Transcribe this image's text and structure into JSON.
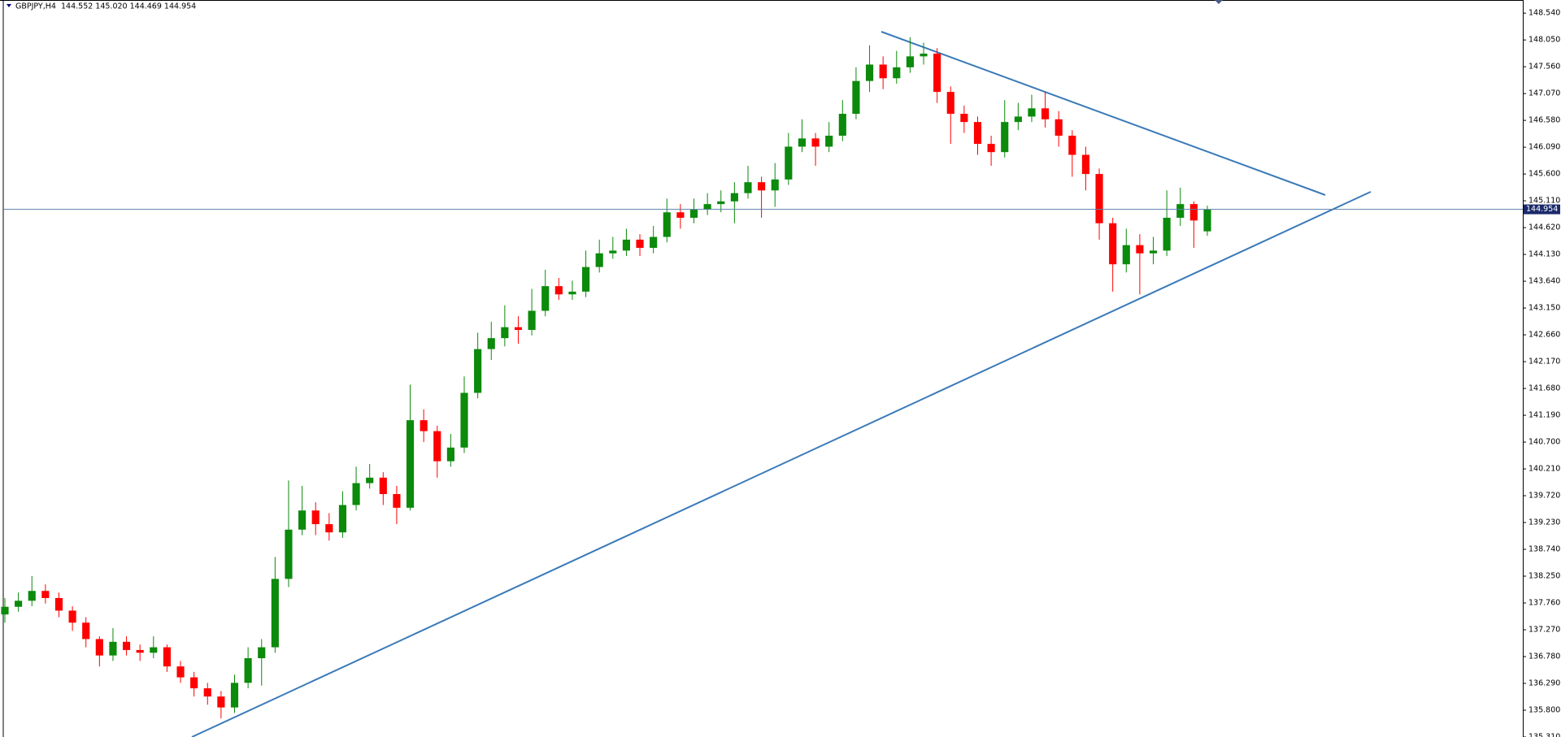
{
  "chart_data": {
    "type": "candlestick",
    "header": {
      "symbol": "GBPJPY,H4",
      "ohlc": "144.552 145.020 144.469 144.954"
    },
    "up_color": "#0b8a0b",
    "down_color": "#ff0000",
    "ylim": [
      135.31,
      148.78
    ],
    "yticks": [
      {
        "value": 148.54,
        "label": "148.540"
      },
      {
        "value": 148.05,
        "label": "148.050"
      },
      {
        "value": 147.56,
        "label": "147.560"
      },
      {
        "value": 147.07,
        "label": "147.070"
      },
      {
        "value": 146.58,
        "label": "146.580"
      },
      {
        "value": 146.09,
        "label": "146.090"
      },
      {
        "value": 145.6,
        "label": "145.600"
      },
      {
        "value": 145.11,
        "label": "145.110"
      },
      {
        "value": 144.62,
        "label": "144.620"
      },
      {
        "value": 144.13,
        "label": "144.130"
      },
      {
        "value": 143.64,
        "label": "143.640"
      },
      {
        "value": 143.15,
        "label": "143.150"
      },
      {
        "value": 142.66,
        "label": "142.660"
      },
      {
        "value": 142.17,
        "label": "142.170"
      },
      {
        "value": 141.68,
        "label": "141.680"
      },
      {
        "value": 141.19,
        "label": "141.190"
      },
      {
        "value": 140.7,
        "label": "140.700"
      },
      {
        "value": 140.21,
        "label": "140.210"
      },
      {
        "value": 139.72,
        "label": "139.720"
      },
      {
        "value": 139.23,
        "label": "139.230"
      },
      {
        "value": 138.74,
        "label": "138.740"
      },
      {
        "value": 138.25,
        "label": "138.250"
      },
      {
        "value": 137.76,
        "label": "137.760"
      },
      {
        "value": 137.27,
        "label": "137.270"
      },
      {
        "value": 136.78,
        "label": "136.780"
      },
      {
        "value": 136.29,
        "label": "136.290"
      },
      {
        "value": 135.8,
        "label": "135.800"
      },
      {
        "value": 135.31,
        "label": "135.310"
      }
    ],
    "current_price": {
      "value": 144.954,
      "label": "144.954"
    },
    "open": [
      137.55,
      137.69,
      137.8,
      137.98,
      137.85,
      137.62,
      137.4,
      137.1,
      136.8,
      137.05,
      136.9,
      136.85,
      136.95,
      136.6,
      136.4,
      136.2,
      136.05,
      135.85,
      136.3,
      136.75,
      136.95,
      138.2,
      139.1,
      139.45,
      139.2,
      139.05,
      139.55,
      139.95,
      140.05,
      139.75,
      139.5,
      141.1,
      140.9,
      140.35,
      140.6,
      141.6,
      142.4,
      142.6,
      142.8,
      142.75,
      143.1,
      143.55,
      143.4,
      143.45,
      143.9,
      144.15,
      144.2,
      144.4,
      144.25,
      144.45,
      144.9,
      144.8,
      144.95,
      145.05,
      145.1,
      145.25,
      145.45,
      145.3,
      145.5,
      146.1,
      146.25,
      146.1,
      146.3,
      146.7,
      147.3,
      147.6,
      147.35,
      147.55,
      147.75,
      147.8,
      147.1,
      146.7,
      146.55,
      146.15,
      146.0,
      146.55,
      146.65,
      146.8,
      146.6,
      146.3,
      145.95,
      145.6,
      144.7,
      143.95,
      144.3,
      144.15,
      144.2,
      144.8,
      145.05,
      144.552
    ],
    "high": [
      137.85,
      137.95,
      138.25,
      138.1,
      137.95,
      137.7,
      137.5,
      137.15,
      137.3,
      137.15,
      137.0,
      137.15,
      137.0,
      136.7,
      136.5,
      136.3,
      136.15,
      136.45,
      136.95,
      137.1,
      138.6,
      140.0,
      139.9,
      139.6,
      139.4,
      139.8,
      140.25,
      140.3,
      140.15,
      139.9,
      141.75,
      141.3,
      141.0,
      140.85,
      141.9,
      142.7,
      142.9,
      143.2,
      143.0,
      143.5,
      143.85,
      143.7,
      143.65,
      144.2,
      144.4,
      144.45,
      144.6,
      144.5,
      144.65,
      145.15,
      145.05,
      145.15,
      145.25,
      145.3,
      145.45,
      145.75,
      145.55,
      145.8,
      146.35,
      146.6,
      146.35,
      146.55,
      146.95,
      147.55,
      147.95,
      147.75,
      147.85,
      148.1,
      148.0,
      147.9,
      147.2,
      146.85,
      146.65,
      146.3,
      146.95,
      146.9,
      147.05,
      147.1,
      146.75,
      146.4,
      146.1,
      145.7,
      144.8,
      144.6,
      144.5,
      144.45,
      145.3,
      145.35,
      145.1,
      145.02
    ],
    "low": [
      137.4,
      137.6,
      137.7,
      137.75,
      137.5,
      137.25,
      136.95,
      136.6,
      136.7,
      136.8,
      136.7,
      136.75,
      136.5,
      136.3,
      136.05,
      135.9,
      135.65,
      135.75,
      136.2,
      136.25,
      136.85,
      138.05,
      139.0,
      139.0,
      138.9,
      138.95,
      139.45,
      139.85,
      139.55,
      139.2,
      139.45,
      140.7,
      140.05,
      140.25,
      140.5,
      141.5,
      142.2,
      142.45,
      142.5,
      142.65,
      143.0,
      143.3,
      143.3,
      143.35,
      143.8,
      144.05,
      144.1,
      144.1,
      144.15,
      144.35,
      144.6,
      144.7,
      144.85,
      144.9,
      144.7,
      145.15,
      144.8,
      145.0,
      145.4,
      146.0,
      145.75,
      146.0,
      146.2,
      146.6,
      147.1,
      147.15,
      147.25,
      147.45,
      147.6,
      146.9,
      146.15,
      146.35,
      145.95,
      145.75,
      145.9,
      146.4,
      146.55,
      146.45,
      146.1,
      145.55,
      145.3,
      144.4,
      143.45,
      143.8,
      143.4,
      143.95,
      144.1,
      144.65,
      144.25,
      144.469
    ],
    "close": [
      137.69,
      137.8,
      137.98,
      137.85,
      137.62,
      137.4,
      137.1,
      136.8,
      137.05,
      136.9,
      136.85,
      136.95,
      136.6,
      136.4,
      136.2,
      136.05,
      135.85,
      136.3,
      136.75,
      136.95,
      138.2,
      139.1,
      139.45,
      139.2,
      139.05,
      139.55,
      139.95,
      140.05,
      139.75,
      139.5,
      141.1,
      140.9,
      140.35,
      140.6,
      141.6,
      142.4,
      142.6,
      142.8,
      142.75,
      143.1,
      143.55,
      143.4,
      143.45,
      143.9,
      144.15,
      144.2,
      144.4,
      144.25,
      144.45,
      144.9,
      144.8,
      144.95,
      145.05,
      145.1,
      145.25,
      145.45,
      145.3,
      145.5,
      146.1,
      146.25,
      146.1,
      146.3,
      146.7,
      147.3,
      147.6,
      147.35,
      147.55,
      147.75,
      147.8,
      147.1,
      146.7,
      146.55,
      146.15,
      146.0,
      146.55,
      146.65,
      146.8,
      146.6,
      146.3,
      145.95,
      145.6,
      144.7,
      143.95,
      144.3,
      144.15,
      144.2,
      144.8,
      145.05,
      144.75,
      144.954
    ]
  }
}
